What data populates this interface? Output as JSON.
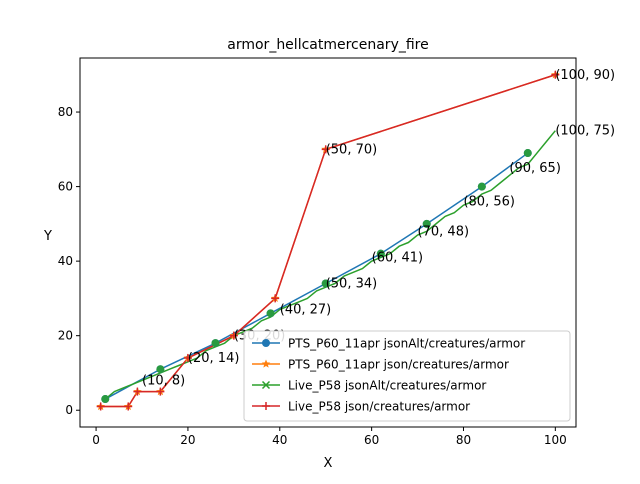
{
  "chart_data": {
    "type": "line",
    "title": "armor_hellcatmercenary_fire",
    "xlabel": "X",
    "ylabel": "Y",
    "xlim": [
      -3.5,
      104.5
    ],
    "ylim": [
      -4.5,
      94.5
    ],
    "xticks": [
      0,
      20,
      40,
      60,
      80,
      100
    ],
    "yticks": [
      0,
      20,
      40,
      60,
      80
    ],
    "grid": false,
    "legend_position": "lower-right",
    "series": [
      {
        "name": "PTS_P60_11apr jsonAlt/creatures/armor",
        "color": "#1f77b4",
        "marker": "circle",
        "x": [
          2,
          14,
          26,
          38,
          50,
          62,
          72,
          84,
          94
        ],
        "y": [
          3,
          11,
          18,
          26,
          34,
          42,
          50,
          60,
          69
        ]
      },
      {
        "name": "PTS_P60_11apr json/creatures/armor",
        "color": "#ff7f0e",
        "marker": "star",
        "x": [
          1,
          7,
          9,
          14,
          20,
          30,
          39,
          50,
          100
        ],
        "y": [
          1,
          1,
          5,
          5,
          14,
          20,
          30,
          70,
          90
        ]
      },
      {
        "name": "Live_P58 jsonAlt/creatures/armor",
        "color": "#2ca02c",
        "marker": "x",
        "x": [
          2,
          3,
          4,
          6,
          8,
          10,
          12,
          14,
          16,
          18,
          20,
          22,
          24,
          26,
          28,
          30,
          32,
          34,
          36,
          38,
          40,
          42,
          44,
          46,
          48,
          50,
          52,
          54,
          56,
          58,
          60,
          62,
          64,
          66,
          68,
          70,
          72,
          74,
          76,
          78,
          80,
          82,
          84,
          86,
          88,
          90,
          92,
          94,
          96,
          98,
          100
        ],
        "y": [
          3,
          4,
          5,
          6,
          7,
          8,
          9,
          10,
          11,
          12,
          13,
          14,
          16,
          17,
          18,
          20,
          21,
          22,
          24,
          25,
          27,
          28,
          29,
          30,
          32,
          33,
          34,
          36,
          37,
          38,
          40,
          41,
          42,
          44,
          45,
          47,
          48,
          50,
          52,
          53,
          55,
          56,
          58,
          59,
          61,
          63,
          65,
          66,
          69,
          72,
          75
        ]
      },
      {
        "name": "Live_P58 json/creatures/armor",
        "color": "#d62728",
        "marker": "plus",
        "x": [
          1,
          7,
          9,
          14,
          20,
          30,
          39,
          50,
          100
        ],
        "y": [
          1,
          1,
          5,
          5,
          14,
          20,
          30,
          70,
          90
        ]
      }
    ],
    "annotations": [
      {
        "text": "(10, 8)",
        "x": 10,
        "y": 8
      },
      {
        "text": "(20, 14)",
        "x": 20,
        "y": 14
      },
      {
        "text": "(30, 20)",
        "x": 30,
        "y": 20
      },
      {
        "text": "(40, 27)",
        "x": 40,
        "y": 27
      },
      {
        "text": "(50, 34)",
        "x": 50,
        "y": 34
      },
      {
        "text": "(60, 41)",
        "x": 60,
        "y": 41
      },
      {
        "text": "(70, 48)",
        "x": 70,
        "y": 48
      },
      {
        "text": "(80, 56)",
        "x": 80,
        "y": 56
      },
      {
        "text": "(90, 65)",
        "x": 90,
        "y": 65
      },
      {
        "text": "(100, 75)",
        "x": 100,
        "y": 75
      },
      {
        "text": "(50, 70)",
        "x": 50,
        "y": 70
      },
      {
        "text": "(100, 90)",
        "x": 100,
        "y": 90
      }
    ]
  }
}
